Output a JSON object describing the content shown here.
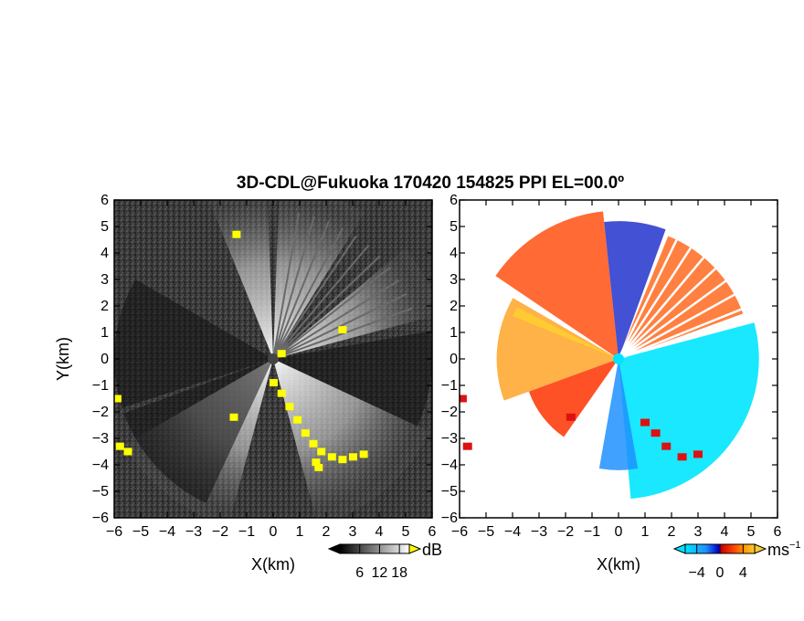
{
  "chart_data": [
    {
      "type": "heatmap",
      "panel": "left",
      "title": "3D-CDL@Fukuoka 170420 154825 PPI EL=00.0º",
      "xlabel": "X(km)",
      "ylabel": "Y(km)",
      "xlim": [
        -6,
        6
      ],
      "ylim": [
        -6,
        6
      ],
      "xticks": [
        -6,
        -5,
        -4,
        -3,
        -2,
        -1,
        0,
        1,
        2,
        3,
        4,
        5,
        6
      ],
      "yticks": [
        -6,
        -5,
        -4,
        -3,
        -2,
        -1,
        0,
        1,
        2,
        3,
        4,
        5,
        6
      ],
      "xtick_labels": [
        "−6",
        "−5",
        "−4",
        "−3",
        "−2",
        "−1",
        "0",
        "1",
        "2",
        "3",
        "4",
        "5",
        "6"
      ],
      "ytick_labels": [
        "−6",
        "−5",
        "−4",
        "−3",
        "−2",
        "−1",
        "0",
        "1",
        "2",
        "3",
        "4",
        "5",
        "6"
      ],
      "colorbar": {
        "unit": "dB",
        "tick_values": [
          6,
          12,
          18
        ],
        "tick_labels": [
          "6",
          "12",
          "18"
        ],
        "range": [
          0,
          21
        ],
        "colors": [
          "#000000",
          "#ffffff"
        ],
        "over_color": "#ffff00"
      },
      "background_color": "#3a3a3a",
      "highlight_color": "#ffff00",
      "bright_sectors_deg": [
        [
          -150,
          -105
        ],
        [
          -75,
          -25
        ],
        [
          15,
          40
        ],
        [
          58,
          88
        ],
        [
          92,
          112
        ]
      ],
      "dark_sectors_deg": [
        [
          150,
          198
        ],
        [
          200,
          245
        ],
        [
          -25,
          10
        ]
      ]
    },
    {
      "type": "heatmap",
      "panel": "right",
      "xlabel": "X(km)",
      "xlim": [
        -6,
        6
      ],
      "ylim": [
        -6,
        6
      ],
      "xticks": [
        -6,
        -5,
        -4,
        -3,
        -2,
        -1,
        0,
        1,
        2,
        3,
        4,
        5,
        6
      ],
      "yticks": [
        -6,
        -5,
        -4,
        -3,
        -2,
        -1,
        0,
        1,
        2,
        3,
        4,
        5,
        6
      ],
      "xtick_labels": [
        "−6",
        "−5",
        "−4",
        "−3",
        "−2",
        "−1",
        "0",
        "1",
        "2",
        "3",
        "4",
        "5",
        "6"
      ],
      "ytick_labels": [
        "−6",
        "−5",
        "−4",
        "−3",
        "−2",
        "−1",
        "0",
        "1",
        "2",
        "3",
        "4",
        "5",
        "6"
      ],
      "colorbar": {
        "unit": "ms",
        "unit_sup": "−1",
        "tick_values": [
          -4,
          0,
          4
        ],
        "tick_labels": [
          "−4",
          "0",
          "4"
        ],
        "range": [
          -6,
          6
        ],
        "colors": [
          "#00e5ff",
          "#1e90ff",
          "#0000cc",
          "#cc0000",
          "#ff4500",
          "#ff9900",
          "#ffcc33"
        ]
      },
      "approaching_color": "#00e5ff",
      "receding_color": "#ff6600"
    }
  ]
}
